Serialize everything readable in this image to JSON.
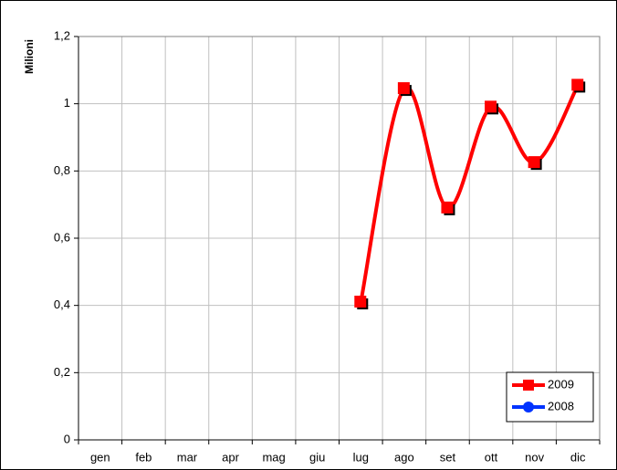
{
  "chart_data": {
    "type": "line",
    "y_label": "Milioni",
    "categories": [
      "gen",
      "feb",
      "mar",
      "apr",
      "mag",
      "giu",
      "lug",
      "ago",
      "set",
      "ott",
      "nov",
      "dic"
    ],
    "series": [
      {
        "name": "2009",
        "color": "#ff0000",
        "marker": "square",
        "values": [
          null,
          null,
          null,
          null,
          null,
          null,
          0.41,
          1.045,
          0.69,
          0.99,
          0.825,
          1.055
        ]
      },
      {
        "name": "2008",
        "color": "#0033ff",
        "marker": "circle",
        "values": [
          null,
          null,
          null,
          null,
          null,
          null,
          null,
          null,
          null,
          null,
          null,
          null
        ]
      }
    ],
    "ylim": [
      0,
      1.2
    ],
    "yticks": [
      0,
      {
        "value": 0.2,
        "label": "0,2"
      },
      {
        "value": 0.4,
        "label": "0,4"
      },
      {
        "value": 0.6,
        "label": "0,6"
      },
      {
        "value": 0.8,
        "label": "0,8"
      },
      1,
      {
        "value": 1.2,
        "label": "1,2"
      }
    ],
    "grid": true,
    "smooth": true,
    "legend": "bottom-right"
  }
}
